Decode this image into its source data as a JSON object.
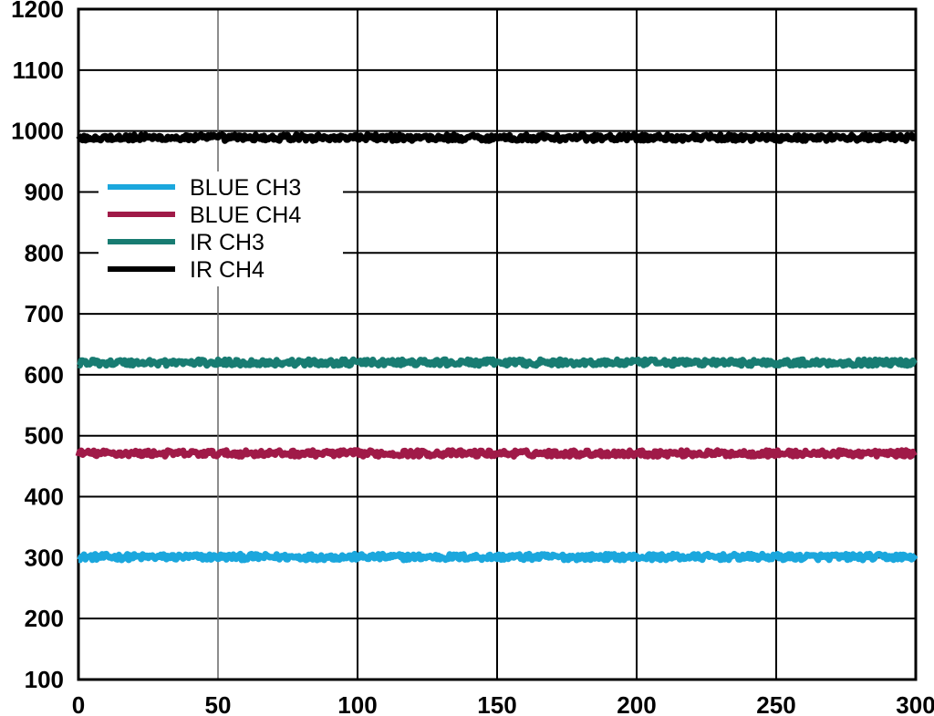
{
  "chart_data": {
    "type": "line",
    "title": "",
    "xlabel": "",
    "ylabel": "",
    "xlim": [
      0,
      300
    ],
    "ylim": [
      100,
      1200
    ],
    "x_ticks": [
      "0",
      "50",
      "100",
      "150",
      "200",
      "250",
      "300"
    ],
    "y_ticks": [
      "100",
      "200",
      "300",
      "400",
      "500",
      "600",
      "700",
      "800",
      "900",
      "1000",
      "1100",
      "1200"
    ],
    "grid": true,
    "legend_position": "upper-left",
    "series": [
      {
        "name": "BLUE CH3",
        "color": "#1ba7dd",
        "level": 301,
        "noise": 5
      },
      {
        "name": "BLUE CH4",
        "color": "#a01a48",
        "level": 471,
        "noise": 5
      },
      {
        "name": "IR CH3",
        "color": "#187c72",
        "level": 620,
        "noise": 5
      },
      {
        "name": "IR CH4",
        "color": "#000000",
        "level": 989,
        "noise": 5
      }
    ]
  }
}
